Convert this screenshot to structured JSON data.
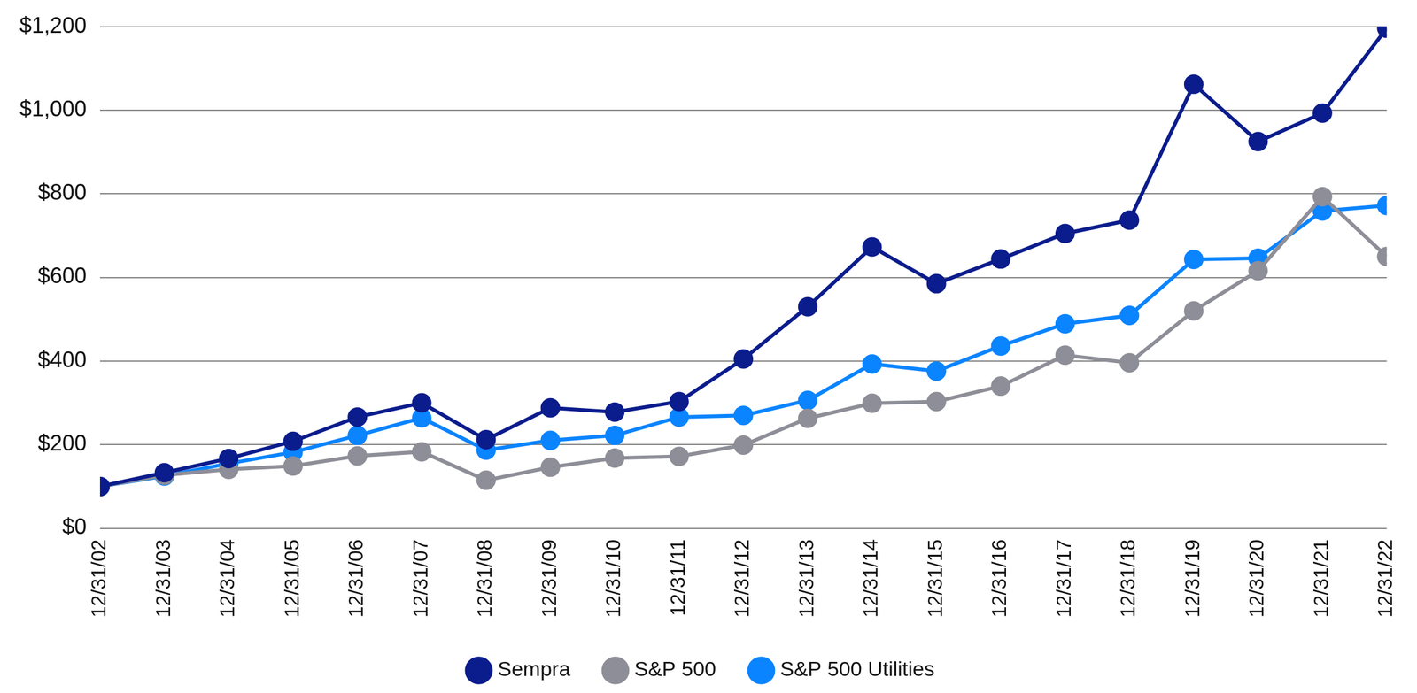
{
  "chart_data": {
    "type": "line",
    "categories": [
      "12/31/02",
      "12/31/03",
      "12/31/04",
      "12/31/05",
      "12/31/06",
      "12/31/07",
      "12/31/08",
      "12/31/09",
      "12/31/10",
      "12/31/11",
      "12/31/12",
      "12/31/13",
      "12/31/14",
      "12/31/15",
      "12/31/16",
      "12/31/17",
      "12/31/18",
      "12/31/19",
      "12/31/20",
      "12/31/21",
      "12/31/22"
    ],
    "series": [
      {
        "name": "Sempra",
        "color": "#0b1c8c",
        "marker": "circle",
        "line_style": "solid",
        "values": [
          100,
          133,
          167,
          208,
          266,
          300,
          212,
          288,
          278,
          303,
          405,
          530,
          673,
          585,
          644,
          705,
          737,
          1062,
          925,
          993,
          1196
        ]
      },
      {
        "name": "S&P 500",
        "color": "#8e8e98",
        "marker": "circle",
        "line_style": "solid",
        "values": [
          100,
          127,
          141,
          149,
          173,
          183,
          115,
          146,
          168,
          172,
          199,
          263,
          299,
          303,
          340,
          414,
          396,
          520,
          616,
          793,
          650
        ]
      },
      {
        "name": "S&P 500 Utilities",
        "color": "#0a84ff",
        "marker": "circle",
        "line_style": "solid",
        "values": [
          100,
          125,
          155,
          182,
          222,
          264,
          187,
          210,
          222,
          266,
          270,
          306,
          393,
          376,
          436,
          489,
          509,
          643,
          646,
          759,
          772
        ]
      }
    ],
    "ylim": [
      0,
      1200
    ],
    "yticks": [
      {
        "value": 0,
        "label": "$0"
      },
      {
        "value": 200,
        "label": "$200"
      },
      {
        "value": 400,
        "label": "$400"
      },
      {
        "value": 600,
        "label": "$600"
      },
      {
        "value": 800,
        "label": "$800"
      },
      {
        "value": 1000,
        "label": "$1,000"
      },
      {
        "value": 1200,
        "label": "$1,200"
      }
    ],
    "grid": true,
    "legend": "bottom"
  }
}
